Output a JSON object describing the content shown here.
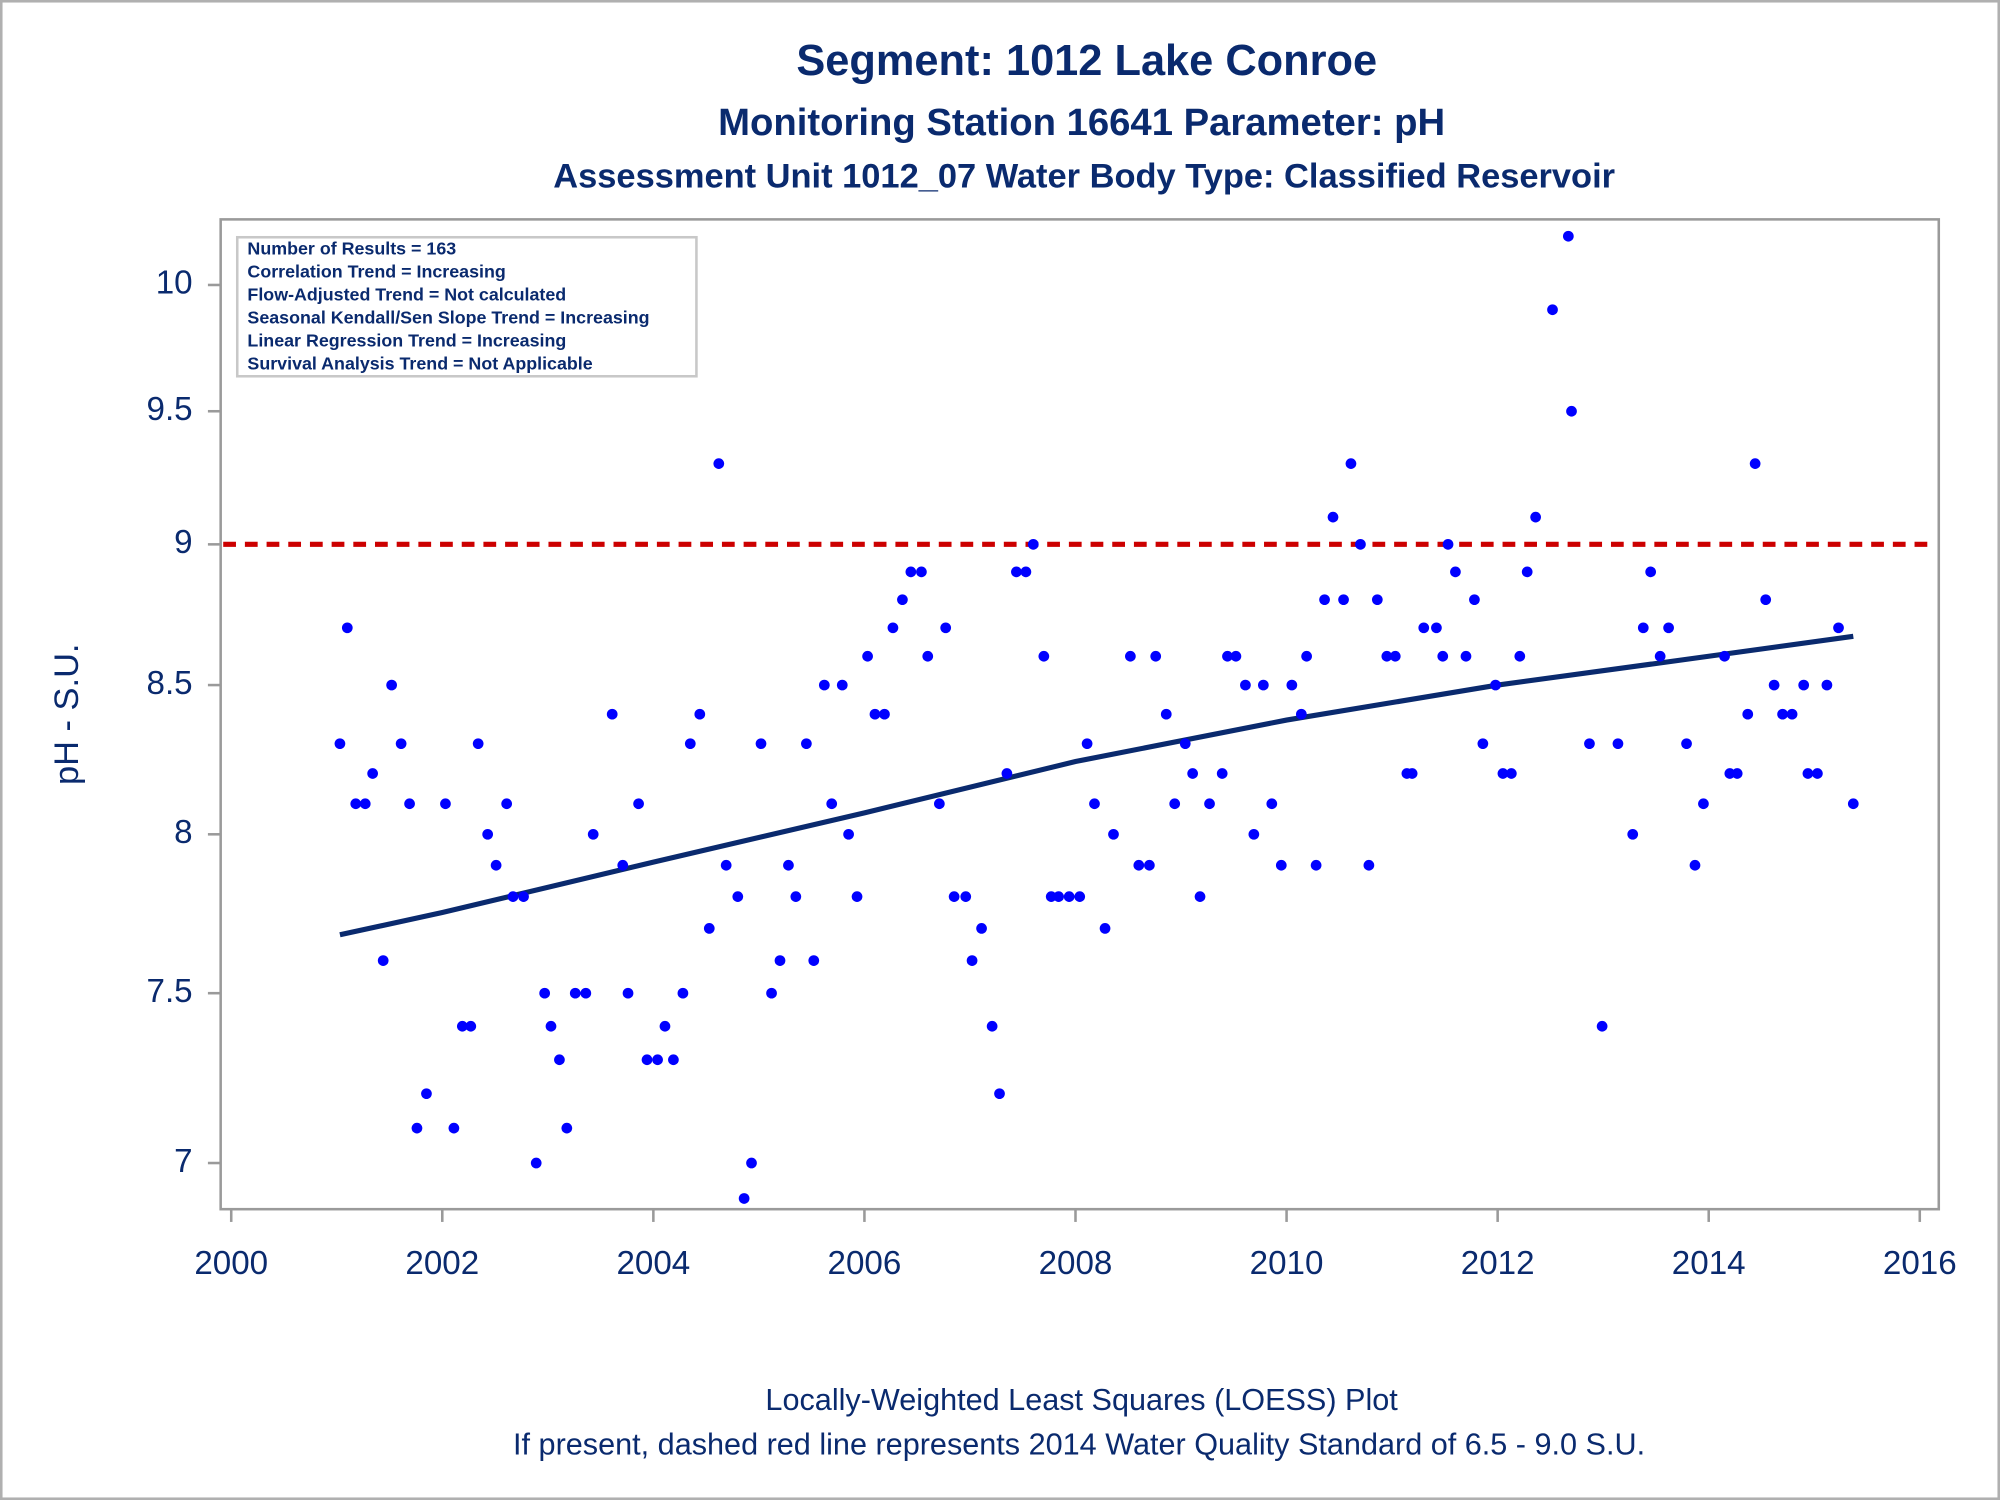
{
  "chart_data": {
    "type": "scatter",
    "title": "Segment: 1012  Lake Conroe",
    "subtitles": [
      "Monitoring Station 16641 Parameter: pH",
      "Assessment Unit 1012_07   Water Body Type: Classified Reservoir"
    ],
    "y_label": "pH - S.U.",
    "stats_box": [
      "Number of Results = 163",
      "Correlation Trend = Increasing",
      "Flow-Adjusted Trend = Not calculated",
      "Seasonal Kendall/Sen Slope Trend = Increasing",
      "Linear Regression Trend = Increasing",
      "Survival Analysis Trend = Not Applicable"
    ],
    "footnotes": [
      "Locally-Weighted Least Squares (LOESS) Plot",
      "If present, dashed red line represents 2014 Water Quality Standard of 6.5 - 9.0 S.U."
    ],
    "xlim": [
      1999.9,
      2016.18
    ],
    "xticks": [
      2000,
      2002,
      2004,
      2006,
      2008,
      2010,
      2012,
      2014,
      2016
    ],
    "ylim": [
      6.87,
      10.27
    ],
    "yticks": [
      7,
      7.5,
      8,
      8.5,
      9,
      9.5,
      10
    ],
    "log_y": true,
    "grid": false,
    "points": {
      "color": "#0000ff",
      "x": [
        2001.03,
        2001.1,
        2001.18,
        2001.27,
        2001.34,
        2001.44,
        2001.52,
        2001.61,
        2001.69,
        2001.76,
        2001.85,
        2002.03,
        2002.11,
        2002.19,
        2002.27,
        2002.34,
        2002.43,
        2002.51,
        2002.61,
        2002.67,
        2002.77,
        2002.89,
        2002.97,
        2003.03,
        2003.11,
        2003.18,
        2003.26,
        2003.36,
        2003.43,
        2003.61,
        2003.71,
        2003.76,
        2003.86,
        2003.94,
        2004.04,
        2004.11,
        2004.19,
        2004.28,
        2004.35,
        2004.44,
        2004.53,
        2004.62,
        2004.69,
        2004.8,
        2004.86,
        2004.93,
        2005.02,
        2005.12,
        2005.2,
        2005.28,
        2005.35,
        2005.45,
        2005.52,
        2005.62,
        2005.69,
        2005.79,
        2005.85,
        2005.93,
        2006.03,
        2006.1,
        2006.19,
        2006.27,
        2006.36,
        2006.44,
        2006.54,
        2006.6,
        2006.71,
        2006.77,
        2006.85,
        2006.96,
        2007.02,
        2007.11,
        2007.21,
        2007.28,
        2007.35,
        2007.44,
        2007.53,
        2007.6,
        2007.7,
        2007.77,
        2007.84,
        2007.94,
        2008.04,
        2008.11,
        2008.18,
        2008.28,
        2008.36,
        2008.52,
        2008.6,
        2008.7,
        2008.76,
        2008.86,
        2008.94,
        2009.04,
        2009.11,
        2009.18,
        2009.27,
        2009.39,
        2009.44,
        2009.52,
        2009.61,
        2009.69,
        2009.78,
        2009.86,
        2009.95,
        2010.05,
        2010.14,
        2010.19,
        2010.28,
        2010.36,
        2010.44,
        2010.54,
        2010.61,
        2010.7,
        2010.78,
        2010.86,
        2010.95,
        2011.03,
        2011.14,
        2011.19,
        2011.3,
        2011.42,
        2011.48,
        2011.53,
        2011.6,
        2011.7,
        2011.78,
        2011.86,
        2011.98,
        2012.05,
        2012.13,
        2012.21,
        2012.28,
        2012.36,
        2012.52,
        2012.67,
        2012.7,
        2012.87,
        2012.99,
        2013.14,
        2013.28,
        2013.38,
        2013.45,
        2013.54,
        2013.62,
        2013.79,
        2013.87,
        2013.95,
        2014.15,
        2014.2,
        2014.27,
        2014.37,
        2014.44,
        2014.54,
        2014.62,
        2014.7,
        2014.79,
        2014.9,
        2014.94,
        2015.03,
        2015.12,
        2015.23,
        2015.37
      ],
      "values": [
        8.3,
        8.7,
        8.1,
        8.1,
        8.2,
        7.6,
        8.5,
        8.3,
        8.1,
        7.1,
        7.2,
        8.1,
        7.1,
        7.4,
        7.4,
        8.3,
        8.0,
        7.9,
        8.1,
        7.8,
        7.8,
        7.0,
        7.5,
        7.4,
        7.3,
        7.1,
        7.5,
        7.5,
        8.0,
        8.4,
        7.9,
        7.5,
        8.1,
        7.3,
        7.3,
        7.4,
        7.3,
        7.5,
        8.3,
        8.4,
        7.7,
        9.3,
        7.9,
        7.8,
        6.9,
        7.0,
        8.3,
        7.5,
        7.6,
        7.9,
        7.8,
        8.3,
        7.6,
        8.5,
        8.1,
        8.5,
        8.0,
        7.8,
        8.6,
        8.4,
        8.4,
        8.7,
        8.8,
        8.9,
        8.9,
        8.6,
        8.1,
        8.7,
        7.8,
        7.8,
        7.6,
        7.7,
        7.4,
        7.2,
        8.2,
        8.9,
        8.9,
        9.0,
        8.6,
        7.8,
        7.8,
        7.8,
        7.8,
        8.3,
        8.1,
        7.7,
        8.0,
        8.6,
        7.9,
        7.9,
        8.6,
        8.4,
        8.1,
        8.3,
        8.2,
        7.8,
        8.1,
        8.2,
        8.6,
        8.6,
        8.5,
        8.0,
        8.5,
        8.1,
        7.9,
        8.5,
        8.4,
        8.6,
        7.9,
        8.8,
        9.1,
        8.8,
        9.3,
        9.0,
        7.9,
        8.8,
        8.6,
        8.6,
        8.2,
        8.2,
        8.7,
        8.7,
        8.6,
        9.0,
        8.9,
        8.6,
        8.8,
        8.3,
        8.5,
        8.2,
        8.2,
        8.6,
        8.9,
        9.1,
        9.9,
        10.2,
        9.5,
        8.3,
        7.4,
        8.3,
        8.0,
        8.7,
        8.9,
        8.6,
        8.7,
        8.3,
        7.9,
        8.1,
        8.6,
        8.2,
        8.2,
        8.4,
        9.3,
        8.8,
        8.5,
        8.4,
        8.4,
        8.5,
        8.2,
        8.2,
        8.5,
        8.7,
        8.1
      ]
    },
    "trend": {
      "color": "#0a2a6e",
      "x": [
        2001.03,
        2002,
        2004,
        2006,
        2008,
        2010,
        2012,
        2014,
        2015.37
      ],
      "values": [
        7.68,
        7.75,
        7.91,
        8.07,
        8.24,
        8.38,
        8.5,
        8.6,
        8.67
      ]
    },
    "reference_line": {
      "value": 9,
      "color": "#cc0000"
    }
  }
}
